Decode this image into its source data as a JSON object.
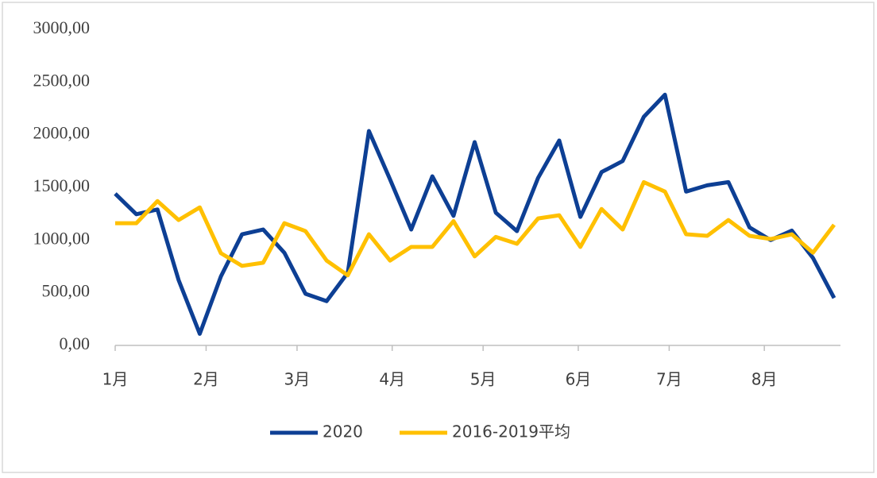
{
  "chart_data": {
    "type": "line",
    "x": [
      0,
      1,
      2,
      3,
      4,
      5,
      6,
      7,
      8,
      9,
      10,
      11,
      12,
      13,
      14,
      15,
      16,
      17,
      18,
      19,
      20,
      21,
      22,
      23,
      24,
      25,
      26,
      27,
      28,
      29,
      30,
      31,
      32,
      33,
      34
    ],
    "series": [
      {
        "name": "2020",
        "color": "#0d3f94",
        "values": [
          1440,
          1245,
          1290,
          620,
          110,
          655,
          1055,
          1100,
          880,
          490,
          420,
          690,
          2035,
          1575,
          1100,
          1605,
          1230,
          1930,
          1260,
          1085,
          1590,
          1945,
          1220,
          1645,
          1750,
          2170,
          2380,
          1460,
          1520,
          1550,
          1120,
          1000,
          1090,
          830,
          450
        ]
      },
      {
        "name": "2016-2019平均",
        "color": "#ffc000",
        "values": [
          1160,
          1160,
          1370,
          1190,
          1310,
          875,
          755,
          785,
          1160,
          1085,
          805,
          665,
          1055,
          805,
          935,
          935,
          1180,
          845,
          1030,
          965,
          1205,
          1235,
          935,
          1295,
          1100,
          1550,
          1460,
          1055,
          1040,
          1190,
          1040,
          1010,
          1055,
          880,
          1145
        ]
      }
    ],
    "xlim": [
      0,
      34.3
    ],
    "xticks": [
      {
        "value": 0,
        "label": "1月"
      },
      {
        "value": 4.3,
        "label": "2月"
      },
      {
        "value": 8.6,
        "label": "3月"
      },
      {
        "value": 13.1,
        "label": "4月"
      },
      {
        "value": 17.4,
        "label": "5月"
      },
      {
        "value": 21.9,
        "label": "6月"
      },
      {
        "value": 26.2,
        "label": "7月"
      },
      {
        "value": 30.7,
        "label": "8月"
      }
    ],
    "ylim": [
      0,
      3000
    ],
    "yticks": [
      {
        "value": 0,
        "label": "0,00"
      },
      {
        "value": 500,
        "label": "500,00"
      },
      {
        "value": 1000,
        "label": "1000,00"
      },
      {
        "value": 1500,
        "label": "1500,00"
      },
      {
        "value": 2000,
        "label": "2000,00"
      },
      {
        "value": 2500,
        "label": "2500,00"
      },
      {
        "value": 3000,
        "label": "3000,00"
      }
    ],
    "legend": "bottom"
  }
}
